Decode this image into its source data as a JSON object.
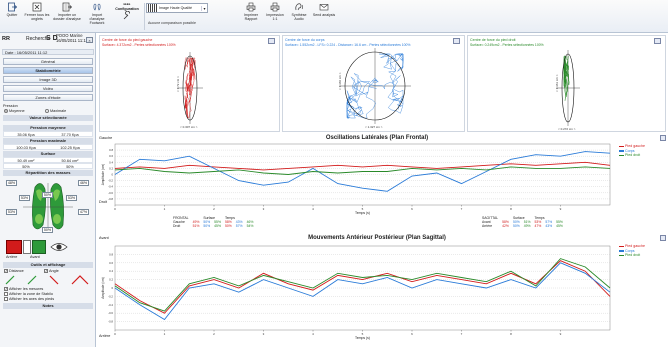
{
  "ribbon": {
    "buttons": [
      {
        "label": "Quitter",
        "icon": "exit-icon"
      },
      {
        "label": "Fermer tous les onglets",
        "icon": "close-tabs-icon"
      },
      {
        "label": "Importer un dossier d'analyse",
        "icon": "import-folder-icon"
      },
      {
        "label": "Import d'analyse Footwork",
        "icon": "footwork-import-icon"
      },
      {
        "label": "Configuration",
        "icon": "wrench-icon"
      },
      {
        "label": "Imprimer Rapport",
        "icon": "print-report-icon"
      },
      {
        "label": "Impression 1:1",
        "icon": "print-actual-icon"
      },
      {
        "label": "Synthèse Audio",
        "icon": "audio-synthesis-icon"
      },
      {
        "label": "Send analysis",
        "icon": "envelope-icon"
      }
    ],
    "quality": {
      "value": "Image Haute Qualité",
      "no_compare": "Aucune comparaison possible"
    }
  },
  "patient": {
    "logo": "RR",
    "search": "Recherche",
    "sd": "S D",
    "name": "POOO Marine",
    "birthdate": "16/05/2011 11:12",
    "date_label": "Date : 16/05/2011 11:12"
  },
  "nav": {
    "items": [
      "Général",
      "Stabilométrie",
      "Image 3D",
      "Vidéo",
      "Zones d'étude"
    ],
    "active": "Stabilométrie"
  },
  "pressure": {
    "radio_label": "Pression",
    "option_mean": "Moyenne",
    "option_max": "Maximale",
    "selected_header": "Valeur sélectionnée",
    "mean_header": "Pression moyenne",
    "mean_left": "35.06 Kpa",
    "mean_right": "37.70 Kpa",
    "max_header": "Pression maximale",
    "max_left": "100.03 Kpa",
    "max_right": "102.25 Kpa",
    "surface_header": "Surface",
    "surface_left": "50.49 cm²",
    "surface_right": "50.64 cm²",
    "surface_pct_left": "50%",
    "surface_pct_right": "50%",
    "repartition_header": "Répartition des masses"
  },
  "feet": {
    "top_left": "48%",
    "top_right": "46%",
    "left_mid": "53%",
    "right_mid": "53%",
    "outer_left": "53%",
    "outer_right": "47%",
    "center_top": "50%",
    "center_bottom": "50%",
    "bar_left_label": "Arrière",
    "bar_right_label": "Avant",
    "bar_left_pct": "47%",
    "bar_right_pct": "53%"
  },
  "tools": {
    "header": "Outils et affichage",
    "distance": "Distance",
    "angle": "Angle",
    "show_measures": "Afficher les mesures",
    "show_cop": "Afficher la zone de Stabilo",
    "show_feet_axes": "Afficher les axes des pieds",
    "notes": "Notes"
  },
  "top_plots": [
    {
      "title": "Centre de force du pied gauche",
      "subtitle": "Surface= 4.372cm2 - Pertes sélectionnées 100%",
      "color": "#d21b1b",
      "ylab": "< 1.72 cm >",
      "xlab": "< 0.307 cm >"
    },
    {
      "title": "Centre de force du corps",
      "subtitle": "Surface= 1.552cm2 - LFS= 0.224 - Distance= 16.6 cm - Pertes sélectionnées 100%",
      "color": "#2a7bd8",
      "ylab": "< 1.366 cm >",
      "xlab": "< 1.327 cm >"
    },
    {
      "title": "Centre de force du pied droit",
      "subtitle": "Surface= 0.249cm2 - Pertes sélectionnées 100%",
      "color": "#2a8a2a",
      "ylab": "< 1.361 cm >",
      "xlab": "< 0.272 cm >"
    }
  ],
  "lateral": {
    "title": "Oscillations Latérales (Plan Frontal)",
    "top_side": "Gauche",
    "bottom_side": "Droit",
    "legend": [
      "Pied gauche",
      "Corps",
      "Pied droit"
    ],
    "stats": {
      "frontal": {
        "header": "FRONTAL",
        "cols": [
          "Surface",
          "Temps"
        ],
        "rows": [
          {
            "name": "Gauche",
            "vals": [
              "49%",
              "50%",
              "55%",
              "58%",
              "43%",
              "46%"
            ]
          },
          {
            "name": "Droit",
            "vals": [
              "51%",
              "50%",
              "45%",
              "50%",
              "57%",
              "54%"
            ]
          }
        ]
      },
      "sagittal": {
        "header": "SAGITTAL",
        "cols": [
          "Surface",
          "Temps"
        ],
        "rows": [
          {
            "name": "Avant",
            "vals": [
              "58%",
              "50%",
              "51%",
              "53%",
              "57%",
              "55%"
            ]
          },
          {
            "name": "Arrière",
            "vals": [
              "42%",
              "50%",
              "49%",
              "47%",
              "43%",
              "45%"
            ]
          }
        ]
      }
    }
  },
  "sagittal_chart": {
    "title": "Mouvements Antérieur Postérieur (Plan Sagittal)",
    "top_side": "Avant",
    "bottom_side": "Arrière",
    "legend": [
      "Pied gauche",
      "Corps",
      "Pied droit"
    ]
  },
  "chart_data": [
    {
      "type": "line",
      "title": "Oscillations Latérales (Plan Frontal)",
      "xlabel": "Temps (s)",
      "ylabel": "Amplitude (cm)",
      "xlim": [
        0,
        10
      ],
      "ylim": [
        -1,
        1
      ],
      "x_ticks": [
        0,
        1,
        2,
        3,
        4,
        5,
        6,
        7,
        8,
        9
      ],
      "y_ticks": [
        "0.8",
        "0.6",
        "0.4",
        "0.2",
        "0",
        "-0.2",
        "-0.4",
        "-0.6",
        "-0.8"
      ],
      "x": [
        0,
        0.5,
        1,
        1.5,
        2,
        2.5,
        3,
        3.5,
        4,
        4.5,
        5,
        5.5,
        6,
        6.5,
        7,
        7.5,
        8,
        8.5,
        9,
        9.5,
        10
      ],
      "series": [
        {
          "name": "Pied gauche",
          "color": "#d21b1b",
          "values": [
            0.2,
            0.25,
            0.2,
            0.3,
            0.25,
            0.2,
            0.15,
            0.2,
            0.25,
            0.3,
            0.25,
            0.3,
            0.25,
            0.2,
            0.25,
            0.3,
            0.35,
            0.3,
            0.35,
            0.4,
            0.3
          ]
        },
        {
          "name": "Corps",
          "color": "#2a7bd8",
          "values": [
            0.0,
            0.5,
            0.45,
            0.6,
            0.2,
            -0.2,
            -0.35,
            -0.25,
            0.2,
            -0.3,
            -0.45,
            -0.55,
            -0.05,
            0.05,
            -0.3,
            0.1,
            0.5,
            0.65,
            0.6,
            0.75,
            0.7
          ]
        },
        {
          "name": "Pied droit",
          "color": "#2a8a2a",
          "values": [
            0.15,
            0.2,
            0.1,
            0.05,
            0.1,
            0.15,
            0.05,
            0.0,
            0.1,
            0.05,
            0.1,
            0.1,
            0.2,
            0.15,
            0.2,
            0.15,
            0.25,
            0.2,
            0.2,
            0.25,
            0.2
          ]
        }
      ]
    },
    {
      "type": "line",
      "title": "Mouvements Antérieur Postérieur (Plan Sagittal)",
      "xlabel": "Temps (s)",
      "ylabel": "Amplitude (cm)",
      "xlim": [
        0,
        10
      ],
      "ylim": [
        -1,
        1
      ],
      "x_ticks": [
        0,
        1,
        2,
        3,
        4,
        5,
        6,
        7,
        8,
        9
      ],
      "y_ticks": [
        "0.8",
        "0.6",
        "0.4",
        "0.2",
        "0",
        "-0.2",
        "-0.4",
        "-0.6",
        "-0.8"
      ],
      "x": [
        0,
        0.5,
        1,
        1.5,
        2,
        2.5,
        3,
        3.5,
        4,
        4.5,
        5,
        5.5,
        6,
        6.5,
        7,
        7.5,
        8,
        8.5,
        9,
        9.5,
        10
      ],
      "series": [
        {
          "name": "Pied gauche",
          "color": "#d21b1b",
          "values": [
            0.1,
            -0.3,
            -0.6,
            0.05,
            0.2,
            0.0,
            0.35,
            0.1,
            -0.05,
            0.3,
            0.2,
            0.35,
            0.15,
            0.3,
            0.2,
            0.1,
            0.35,
            0.1,
            0.65,
            0.4,
            -0.2
          ]
        },
        {
          "name": "Corps",
          "color": "#2a7bd8",
          "values": [
            0.0,
            -0.4,
            -0.75,
            0.0,
            0.1,
            -0.1,
            0.2,
            0.0,
            -0.2,
            0.2,
            0.1,
            0.25,
            0.0,
            0.2,
            0.1,
            0.0,
            0.2,
            0.0,
            0.6,
            0.35,
            -0.1
          ]
        },
        {
          "name": "Pied droit",
          "color": "#2a8a2a",
          "values": [
            0.05,
            -0.35,
            -0.55,
            0.1,
            0.25,
            0.05,
            0.3,
            0.15,
            0.0,
            0.35,
            0.25,
            0.3,
            0.2,
            0.35,
            0.25,
            0.15,
            0.4,
            0.05,
            0.7,
            0.5,
            0.0
          ]
        }
      ]
    }
  ]
}
